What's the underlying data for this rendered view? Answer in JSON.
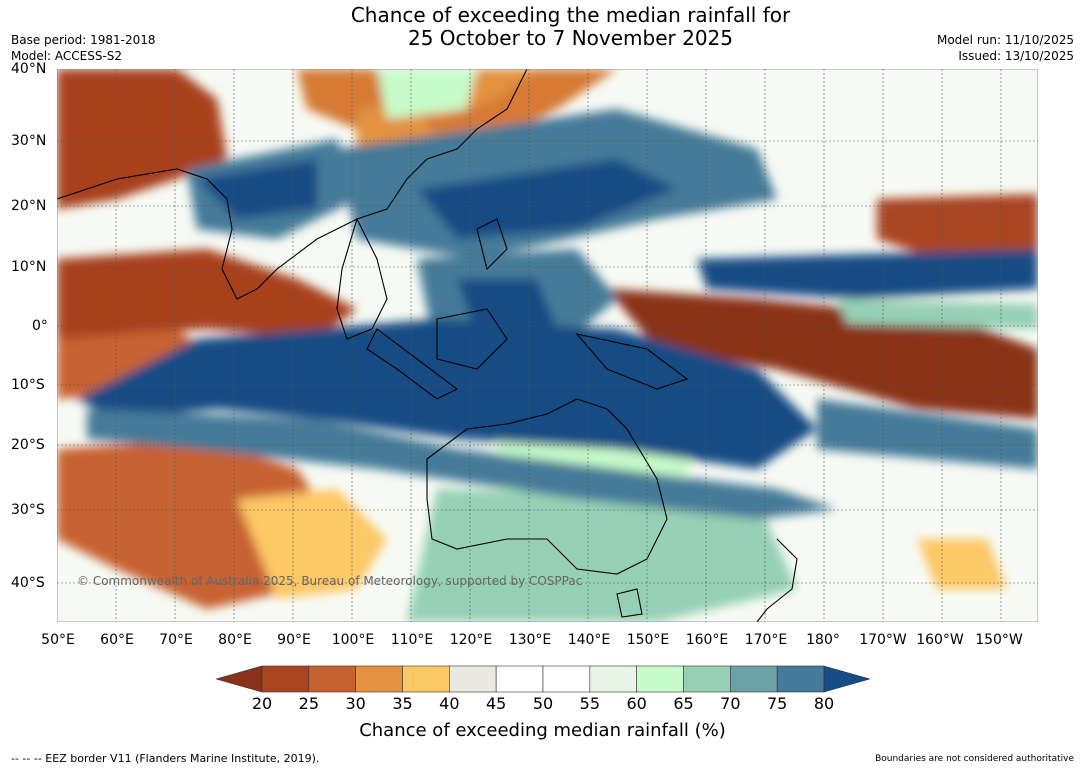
{
  "header": {
    "title_line1": "Chance of exceeding the median rainfall for",
    "title_line2": "25 October to 7 November 2025",
    "base_period": "Base period: 1981-2018",
    "model": "Model: ACCESS-S2",
    "model_run": "Model run: 11/10/2025",
    "issued": "Issued: 13/10/2025"
  },
  "axes": {
    "lat_labels": [
      "40°N",
      "30°N",
      "20°N",
      "10°N",
      "0°",
      "10°S",
      "20°S",
      "30°S",
      "40°S"
    ],
    "lon_labels": [
      "50°E",
      "60°E",
      "70°E",
      "80°E",
      "90°E",
      "100°E",
      "110°E",
      "120°E",
      "130°E",
      "140°E",
      "150°E",
      "160°E",
      "170°E",
      "180°",
      "170°W",
      "160°W",
      "150°W"
    ]
  },
  "map": {
    "copyright": "© Commonwealth of Australia 2025, Bureau of Meteorology, supported by COSPPac"
  },
  "colorbar": {
    "ticks": [
      "20",
      "25",
      "30",
      "35",
      "40",
      "45",
      "50",
      "55",
      "60",
      "65",
      "70",
      "75",
      "80"
    ],
    "colors": [
      "#8a3119",
      "#aa4421",
      "#c76230",
      "#e39241",
      "#fdc866",
      "#ebe8e1",
      "#ffffff",
      "#ffffff",
      "#e7f4e6",
      "#c7fbc9",
      "#96d0b5",
      "#6ba2a5",
      "#457a99",
      "#174c84"
    ],
    "label": "Chance of exceeding median rainfall (%)"
  },
  "footer": {
    "legend": "--  --  -- EEZ border V11 (Flanders Marine Institute, 2019).",
    "note": "Boundaries are not considered authoritative"
  }
}
